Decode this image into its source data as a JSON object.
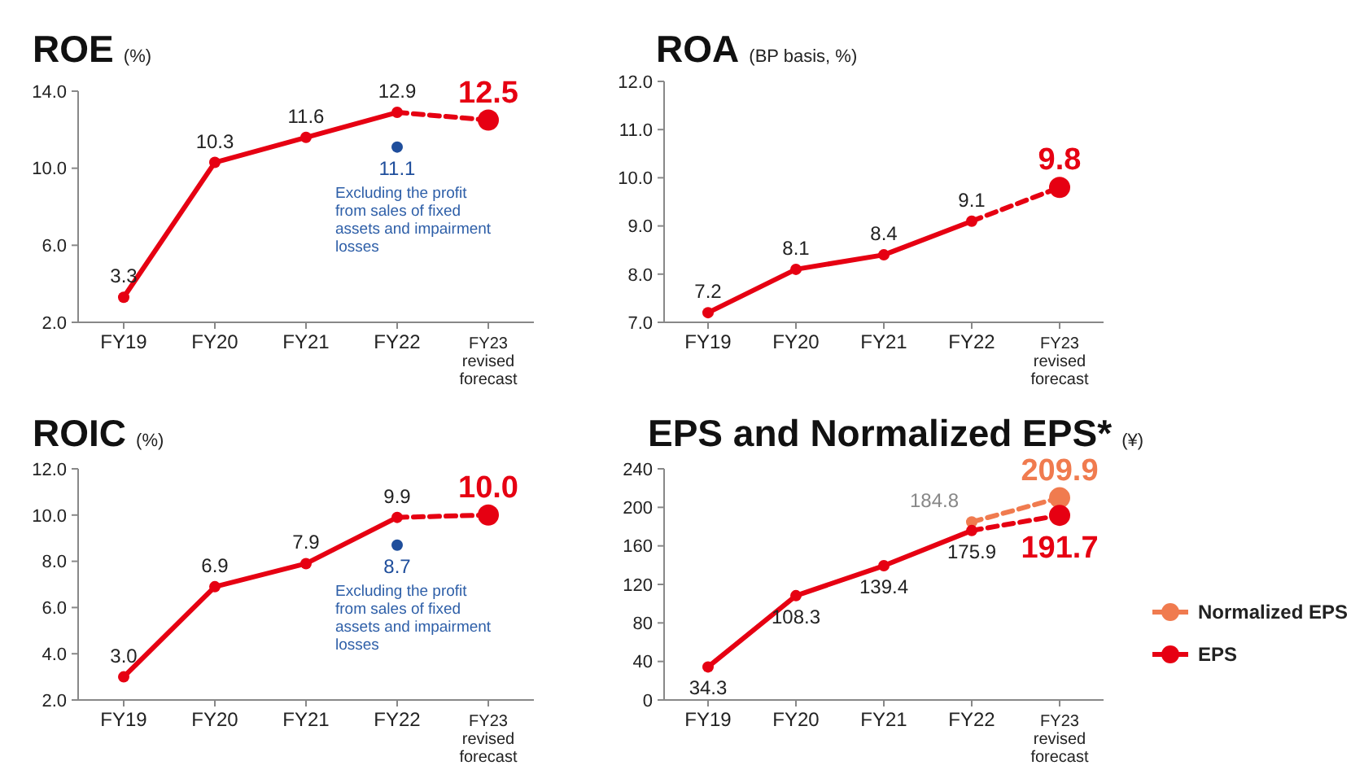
{
  "chart_data": [
    {
      "type": "line",
      "title": "ROE (%)",
      "categories": [
        "FY19",
        "FY20",
        "FY21",
        "FY22",
        "FY23 revised forecast"
      ],
      "ylim": [
        2,
        14
      ],
      "yticks": [
        {
          "value": 2,
          "label": "2.0"
        },
        {
          "value": 6,
          "label": "6.0"
        },
        {
          "value": 10,
          "label": "10.0"
        },
        {
          "value": 14,
          "label": "14.0"
        }
      ],
      "marker": "circle",
      "grid": false,
      "legend": false,
      "series": [
        {
          "color": "#e60012",
          "line_style": "solid",
          "values": [
            3.3,
            10.3,
            11.6,
            12.9,
            null
          ],
          "value_labels": [
            "3.3",
            "10.3",
            "11.6",
            "12.9",
            null
          ]
        },
        {
          "color": "#e60012",
          "line_style": "dashed",
          "values": [
            null,
            null,
            null,
            12.9,
            12.5
          ],
          "value_labels": [
            null,
            null,
            null,
            null,
            "12.5"
          ]
        },
        {
          "type": "scatter",
          "color": "#1f4e9c",
          "values": [
            null,
            null,
            null,
            11.1,
            null
          ],
          "value_labels": [
            null,
            null,
            null,
            "11.1",
            null
          ]
        }
      ],
      "annotations": [
        {
          "text": "Excluding the profit from sales of fixed assets and impairment losses",
          "x": "FY22",
          "y": 11.1
        }
      ]
    },
    {
      "type": "line",
      "title": "ROA (BP basis, %)",
      "categories": [
        "FY19",
        "FY20",
        "FY21",
        "FY22",
        "FY23 revised forecast"
      ],
      "ylim": [
        7,
        12
      ],
      "yticks": [
        {
          "value": 7,
          "label": "7.0"
        },
        {
          "value": 8,
          "label": "8.0"
        },
        {
          "value": 9,
          "label": "9.0"
        },
        {
          "value": 10,
          "label": "10.0"
        },
        {
          "value": 11,
          "label": "11.0"
        },
        {
          "value": 12,
          "label": "12.0"
        }
      ],
      "marker": "circle",
      "grid": false,
      "legend": false,
      "series": [
        {
          "color": "#e60012",
          "line_style": "solid",
          "values": [
            7.2,
            8.1,
            8.4,
            9.1,
            null
          ],
          "value_labels": [
            "7.2",
            "8.1",
            "8.4",
            "9.1",
            null
          ]
        },
        {
          "color": "#e60012",
          "line_style": "dashed",
          "values": [
            null,
            null,
            null,
            9.1,
            9.8
          ],
          "value_labels": [
            null,
            null,
            null,
            null,
            "9.8"
          ]
        }
      ]
    },
    {
      "type": "line",
      "title": "ROIC (%)",
      "categories": [
        "FY19",
        "FY20",
        "FY21",
        "FY22",
        "FY23 revised forecast"
      ],
      "ylim": [
        2,
        12
      ],
      "yticks": [
        {
          "value": 2,
          "label": "2.0"
        },
        {
          "value": 4,
          "label": "4.0"
        },
        {
          "value": 6,
          "label": "6.0"
        },
        {
          "value": 8,
          "label": "8.0"
        },
        {
          "value": 10,
          "label": "10.0"
        },
        {
          "value": 12,
          "label": "12.0"
        }
      ],
      "marker": "circle",
      "grid": false,
      "legend": false,
      "series": [
        {
          "color": "#e60012",
          "line_style": "solid",
          "values": [
            3.0,
            6.9,
            7.9,
            9.9,
            null
          ],
          "value_labels": [
            "3.0",
            "6.9",
            "7.9",
            "9.9",
            null
          ]
        },
        {
          "color": "#e60012",
          "line_style": "dashed",
          "values": [
            null,
            null,
            null,
            9.9,
            10.0
          ],
          "value_labels": [
            null,
            null,
            null,
            null,
            "10.0"
          ]
        },
        {
          "type": "scatter",
          "color": "#1f4e9c",
          "values": [
            null,
            null,
            null,
            8.7,
            null
          ],
          "value_labels": [
            null,
            null,
            null,
            "8.7",
            null
          ]
        }
      ],
      "annotations": [
        {
          "text": "Excluding the profit from sales of fixed assets and impairment losses",
          "x": "FY22",
          "y": 8.7
        }
      ]
    },
    {
      "type": "line",
      "title": "EPS and Normalized EPS* (¥)",
      "categories": [
        "FY19",
        "FY20",
        "FY21",
        "FY22",
        "FY23 revised forecast"
      ],
      "ylim": [
        0,
        240
      ],
      "yticks": [
        0,
        40,
        80,
        120,
        160,
        200,
        240
      ],
      "marker": "circle",
      "grid": false,
      "legend": "right",
      "series": [
        {
          "name": "Normalized EPS",
          "color": "#f07b4f",
          "line_style": "dashed",
          "values": [
            null,
            null,
            null,
            184.8,
            209.9
          ],
          "value_labels": [
            null,
            null,
            null,
            "184.8",
            "209.9"
          ]
        },
        {
          "name": "EPS",
          "color": "#e60012",
          "line_style": "dashed",
          "values": [
            null,
            null,
            null,
            175.9,
            191.7
          ],
          "value_labels": [
            null,
            null,
            null,
            null,
            "191.7"
          ]
        },
        {
          "color": "#e60012",
          "line_style": "solid",
          "values": [
            34.3,
            108.3,
            139.4,
            175.9,
            null
          ],
          "value_labels": [
            "34.3",
            "108.3",
            "139.4",
            "175.9",
            null
          ]
        }
      ]
    }
  ]
}
